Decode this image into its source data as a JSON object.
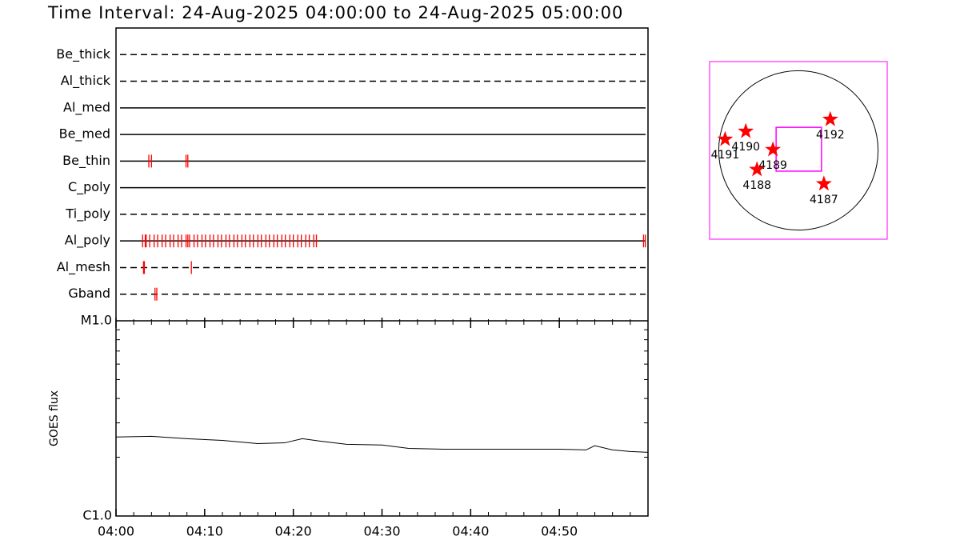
{
  "chart_data": [
    {
      "type": "timeline",
      "title": "Time Interval: 24-Aug-2025 04:00:00 to 24-Aug-2025 05:00:00",
      "xlim": [
        0,
        60
      ],
      "event_color": "#ff0000",
      "series": [
        {
          "name": "Be_thick",
          "line": "dashed",
          "x": []
        },
        {
          "name": "Al_thick",
          "line": "dashed",
          "x": []
        },
        {
          "name": "Al_med",
          "line": "solid",
          "x": []
        },
        {
          "name": "Be_med",
          "line": "solid",
          "x": []
        },
        {
          "name": "Be_thin",
          "line": "solid",
          "x": [
            3.7,
            4.0,
            7.9,
            8.1
          ]
        },
        {
          "name": "C_poly",
          "line": "solid",
          "x": []
        },
        {
          "name": "Ti_poly",
          "line": "dashed",
          "x": []
        },
        {
          "name": "Al_poly",
          "line": "solid",
          "x": [
            3.0,
            3.3,
            3.4,
            3.8,
            4.3,
            4.7,
            5.2,
            5.6,
            6.1,
            6.5,
            7.0,
            7.4,
            7.9,
            8.1,
            8.3,
            8.8,
            9.2,
            9.7,
            10.1,
            10.6,
            11.0,
            11.5,
            11.9,
            12.4,
            12.8,
            13.3,
            13.7,
            14.2,
            14.6,
            15.1,
            15.5,
            16.0,
            16.4,
            16.9,
            17.3,
            17.8,
            18.2,
            18.7,
            19.1,
            19.6,
            20.0,
            20.5,
            20.9,
            21.4,
            21.8,
            22.3,
            22.6,
            59.5,
            59.7
          ]
        },
        {
          "name": "Al_mesh",
          "line": "dashed",
          "x": [
            3.1,
            3.2,
            8.5
          ]
        },
        {
          "name": "Gband",
          "line": "dashed",
          "x": [
            4.4,
            4.6
          ]
        }
      ]
    },
    {
      "type": "line",
      "ylabel": "GOES flux",
      "log_y": true,
      "color": "#000000",
      "xlim": [
        0,
        60
      ],
      "xticks": [
        {
          "value": 0,
          "label": "04:00"
        },
        {
          "value": 10,
          "label": "04:10"
        },
        {
          "value": 20,
          "label": "04:20"
        },
        {
          "value": 30,
          "label": "04:30"
        },
        {
          "value": 40,
          "label": "04:40"
        },
        {
          "value": 50,
          "label": "04:50"
        }
      ],
      "xminor": [
        2,
        4,
        6,
        8,
        12,
        14,
        16,
        18,
        22,
        24,
        26,
        28,
        32,
        34,
        36,
        38,
        42,
        44,
        46,
        48,
        52,
        54,
        56,
        58
      ],
      "ylim": [
        1e-06,
        1e-05
      ],
      "yticks": [
        {
          "value": 1e-06,
          "label": "C1.0"
        },
        {
          "value": 1e-05,
          "label": "M1.0"
        }
      ],
      "yminor": [
        2e-06,
        3e-06,
        4e-06,
        5e-06,
        6e-06,
        7e-06,
        8e-06,
        9e-06
      ],
      "x": [
        0,
        4,
        8,
        12,
        16,
        19,
        21,
        23,
        26,
        30,
        33,
        37,
        40,
        45,
        50,
        53,
        54,
        56,
        58,
        60
      ],
      "values": [
        2.54e-06,
        2.56e-06,
        2.49e-06,
        2.44e-06,
        2.35e-06,
        2.37e-06,
        2.49e-06,
        2.42e-06,
        2.33e-06,
        2.31e-06,
        2.22e-06,
        2.2e-06,
        2.2e-06,
        2.2e-06,
        2.2e-06,
        2.18e-06,
        2.29e-06,
        2.18e-06,
        2.14e-06,
        2.12e-06
      ]
    },
    {
      "type": "map",
      "frame_color": "#ff00ff",
      "marker_color": "#ff0000",
      "xlim": [
        -1070,
        1070
      ],
      "ylim": [
        -1070,
        1070
      ],
      "solar_radius": 960,
      "fov": {
        "x": 5,
        "y": 14,
        "width": 547,
        "height": 528
      },
      "regions": [
        {
          "label": "4191",
          "x": -883,
          "y": 134
        },
        {
          "label": "4190",
          "x": -634,
          "y": 230
        },
        {
          "label": "4189",
          "x": -307,
          "y": 10
        },
        {
          "label": "4188",
          "x": -499,
          "y": -230
        },
        {
          "label": "4192",
          "x": 384,
          "y": 374
        },
        {
          "label": "4187",
          "x": 307,
          "y": -403
        }
      ]
    }
  ]
}
